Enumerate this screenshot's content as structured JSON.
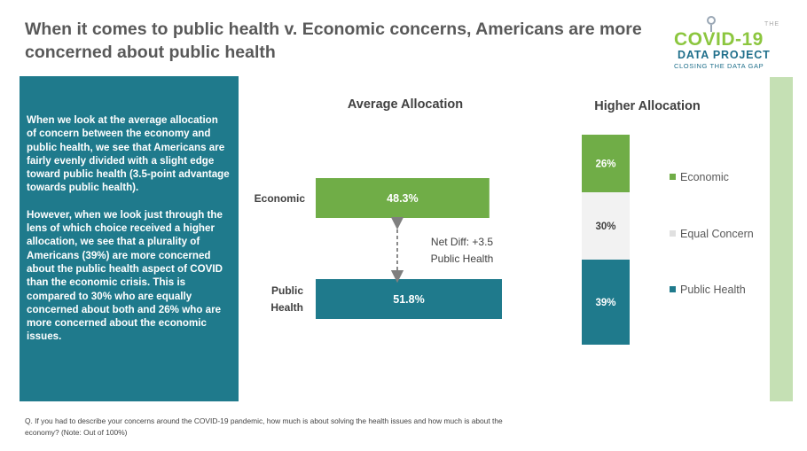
{
  "title": "When it comes to public health v. Economic concerns, Americans are more concerned about public health",
  "logo": {
    "the": "THE",
    "line1": "COVID-19",
    "line2": "DATA PROJECT",
    "line3": "CLOSING THE DATA GAP"
  },
  "textbox": {
    "paragraph1": "When we look at the average allocation of concern between the economy and public health, we see that Americans are fairly evenly divided with a slight edge toward public health (3.5-point advantage towards public health).",
    "paragraph2": "However, when we look just through the lens of which choice received a higher allocation, we see that a plurality of Americans (39%) are more concerned about the public health aspect of COVID than the economic crisis. This is compared to 30% who are equally concerned about both and 26% who are more concerned about the economic issues."
  },
  "footnote": "Q. If you had to describe  your concerns around the COVID-19 pandemic, how much is about solving the health issues and how much is about the economy?  (Note: Out of 100%)",
  "colors": {
    "economic": "#70ad47",
    "equal": "#f2f2f2",
    "public_health": "#1f7a8c",
    "panel": "#1f7a8c",
    "side_bar": "#c5e0b4"
  },
  "chart_data": [
    {
      "type": "bar",
      "orientation": "horizontal",
      "title": "Average Allocation",
      "categories": [
        "Economic",
        "Public Health"
      ],
      "values": [
        48.3,
        51.8
      ],
      "value_labels": [
        "48.3%",
        "51.8%"
      ],
      "colors": [
        "#70ad47",
        "#1f7a8c"
      ],
      "annotation": {
        "line1": "Net Diff: +3.5",
        "line2": "Public Health"
      }
    },
    {
      "type": "bar",
      "orientation": "stacked-vertical",
      "title": "Higher Allocation",
      "series": [
        {
          "name": "Economic",
          "value": 26,
          "label": "26%",
          "color": "#70ad47",
          "label_color": "#ffffff"
        },
        {
          "name": "Equal Concern",
          "value": 30,
          "label": "30%",
          "color": "#f2f2f2",
          "label_color": "#404040"
        },
        {
          "name": "Public Health",
          "value": 39,
          "label": "39%",
          "color": "#1f7a8c",
          "label_color": "#ffffff"
        }
      ],
      "legend_position": "right"
    }
  ]
}
